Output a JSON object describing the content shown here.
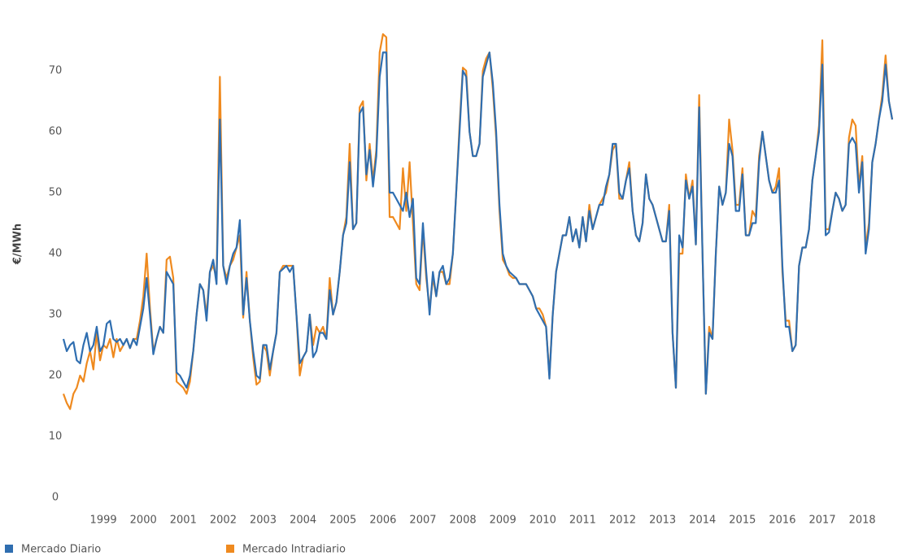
{
  "chart_data": {
    "type": "line",
    "y_label": "€/MWh",
    "categories": [
      null,
      null,
      null,
      null,
      null,
      null,
      null,
      null,
      null,
      null,
      null,
      null,
      "1999",
      null,
      null,
      null,
      null,
      null,
      null,
      null,
      null,
      null,
      null,
      null,
      "2000",
      null,
      null,
      null,
      null,
      null,
      null,
      null,
      null,
      null,
      null,
      null,
      "2001",
      null,
      null,
      null,
      null,
      null,
      null,
      null,
      null,
      null,
      null,
      null,
      "2002",
      null,
      null,
      null,
      null,
      null,
      null,
      null,
      null,
      null,
      null,
      null,
      "2003",
      null,
      null,
      null,
      null,
      null,
      null,
      null,
      null,
      null,
      null,
      null,
      "2004",
      null,
      null,
      null,
      null,
      null,
      null,
      null,
      null,
      null,
      null,
      null,
      "2005",
      null,
      null,
      null,
      null,
      null,
      null,
      null,
      null,
      null,
      null,
      null,
      "2006",
      null,
      null,
      null,
      null,
      null,
      null,
      null,
      null,
      null,
      null,
      null,
      "2007",
      null,
      null,
      null,
      null,
      null,
      null,
      null,
      null,
      null,
      null,
      null,
      "2008",
      null,
      null,
      null,
      null,
      null,
      null,
      null,
      null,
      null,
      null,
      null,
      "2009",
      null,
      null,
      null,
      null,
      null,
      null,
      null,
      null,
      null,
      null,
      null,
      "2010",
      null,
      null,
      null,
      null,
      null,
      null,
      null,
      null,
      null,
      null,
      null,
      "2011",
      null,
      null,
      null,
      null,
      null,
      null,
      null,
      null,
      null,
      null,
      null,
      "2012",
      null,
      null,
      null,
      null,
      null,
      null,
      null,
      null,
      null,
      null,
      null,
      "2013",
      null,
      null,
      null,
      null,
      null,
      null,
      null,
      null,
      null,
      null,
      null,
      "2014",
      null,
      null,
      null,
      null,
      null,
      null,
      null,
      null,
      null,
      null,
      null,
      "2015",
      null,
      null,
      null,
      null,
      null,
      null,
      null,
      null,
      null,
      null,
      null,
      "2016",
      null,
      null,
      null,
      null,
      null,
      null,
      null,
      null,
      null,
      null,
      null,
      "2017",
      null,
      null,
      null,
      null,
      null,
      null,
      null,
      null,
      null,
      null,
      null,
      "2018",
      null,
      null,
      null,
      null,
      null,
      null,
      null,
      null,
      null
    ],
    "series": [
      {
        "name": "Mercado Diario",
        "color": "#2f6eb0",
        "values": [
          26,
          24,
          25,
          25.5,
          22.5,
          22,
          25,
          27,
          24,
          25,
          28,
          24,
          25,
          28.5,
          29,
          26,
          25.5,
          26,
          25,
          26,
          24.5,
          26,
          25,
          28,
          31,
          36,
          30,
          23.5,
          26,
          28,
          27,
          37,
          36,
          35,
          20.5,
          20,
          19,
          18,
          20,
          24,
          30,
          35,
          34,
          29,
          37,
          39,
          35,
          62,
          38,
          35,
          38,
          40,
          41,
          45.5,
          30,
          36,
          29,
          24,
          20,
          19.5,
          25,
          25,
          21,
          24,
          27,
          37,
          37.5,
          38,
          37,
          38,
          30,
          22,
          23,
          24,
          30,
          23,
          24,
          27,
          27,
          26,
          34,
          30,
          32,
          37,
          43,
          45,
          55,
          44,
          45,
          63,
          64,
          53,
          57,
          51,
          56,
          69,
          73,
          73,
          50,
          50,
          49,
          48,
          47,
          50,
          46,
          49,
          36,
          35,
          45,
          37,
          30,
          37,
          33,
          37,
          38,
          35,
          36,
          40,
          50,
          60,
          70,
          69,
          60,
          56,
          56,
          58,
          69,
          71,
          73,
          68,
          60,
          48,
          40,
          38,
          37,
          36.5,
          36,
          35,
          35,
          35,
          34,
          33,
          31,
          30,
          29,
          28,
          19.5,
          30,
          37,
          40,
          43,
          43,
          46,
          42,
          44,
          41,
          46,
          42,
          47,
          44,
          46,
          48,
          48,
          51,
          53,
          58,
          58,
          50,
          49,
          52,
          54,
          47,
          43,
          42,
          45,
          53,
          49,
          48,
          46,
          44,
          42,
          42,
          47,
          27,
          18,
          43,
          41,
          52,
          49,
          51,
          41.5,
          64,
          40,
          17,
          27,
          26,
          40,
          51,
          48,
          50,
          58,
          56,
          47,
          47,
          53,
          43,
          43,
          45,
          45,
          55,
          60,
          56,
          52,
          50,
          50,
          52,
          38,
          28,
          28,
          24,
          25,
          38,
          41,
          41,
          44,
          52,
          56,
          60,
          71,
          43,
          43.5,
          47,
          50,
          49,
          47,
          48,
          58,
          59,
          58,
          50,
          55,
          40,
          44,
          55,
          58,
          62,
          65,
          71,
          65,
          62
        ]
      },
      {
        "name": "Mercado Intradiario",
        "color": "#ef8a1f",
        "values": [
          17,
          15.5,
          14.5,
          17,
          18,
          20,
          19,
          22,
          24,
          21,
          27,
          22.5,
          25,
          24.5,
          26,
          23,
          26,
          24,
          25,
          26,
          24.5,
          26,
          26,
          29,
          33,
          40,
          31,
          24,
          26,
          28,
          27,
          39,
          39.5,
          36,
          19,
          18.5,
          18,
          17,
          19,
          24,
          30,
          35,
          34,
          30,
          37,
          38,
          36,
          69,
          38,
          36,
          38,
          39,
          41,
          43,
          29.5,
          37,
          29,
          23,
          18.5,
          19,
          25,
          24,
          20,
          24,
          27,
          37,
          38,
          38,
          38,
          38,
          30,
          20,
          23,
          24,
          30,
          25,
          28,
          27,
          28,
          26,
          36,
          30,
          32,
          37,
          43,
          46,
          58,
          44,
          45,
          64,
          65,
          52,
          58,
          52,
          57,
          73,
          76,
          75.5,
          46,
          46,
          45,
          44,
          54,
          47,
          55,
          45,
          35,
          34,
          44,
          36,
          31,
          36,
          33,
          37,
          37,
          35,
          35,
          40,
          50,
          61,
          70.5,
          70,
          60,
          56,
          56,
          58,
          70,
          72,
          73,
          67,
          59,
          47,
          39,
          38,
          36.5,
          36,
          36,
          35,
          35,
          35,
          34,
          33,
          31,
          31,
          30,
          28,
          20,
          30,
          37,
          40,
          43,
          43,
          46,
          42,
          44,
          41,
          46,
          42,
          48,
          44,
          46,
          48,
          49,
          50,
          53,
          57,
          58,
          49,
          49,
          52,
          55,
          47,
          43,
          42,
          45,
          53,
          49,
          48,
          46,
          44,
          42,
          42,
          48,
          27,
          18,
          40,
          40,
          53,
          49,
          52,
          41.5,
          66,
          40,
          17,
          28,
          26,
          40,
          51,
          48,
          50,
          62,
          57,
          48,
          48,
          54,
          43,
          43,
          47,
          46,
          56,
          60,
          56,
          52,
          50,
          51,
          54,
          37,
          29,
          29,
          24,
          25,
          38,
          41,
          41,
          44,
          52,
          56,
          61,
          75,
          44,
          44,
          47,
          50,
          49,
          47,
          48,
          59,
          62,
          61,
          51,
          56,
          41,
          45,
          55,
          58,
          62,
          66,
          72.5,
          65,
          62
        ]
      }
    ],
    "ylim": [
      0,
      77
    ],
    "yticks": [
      0,
      10,
      20,
      30,
      40,
      50,
      60,
      70
    ]
  }
}
